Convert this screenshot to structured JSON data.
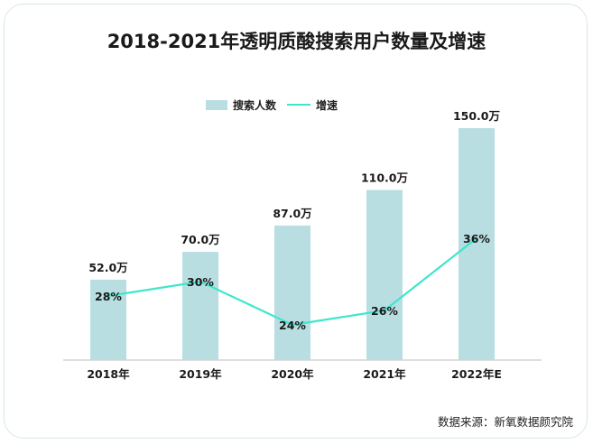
{
  "title": "2018-2021年透明质酸搜索用户数量及增速",
  "legend": {
    "bars_label": "搜索人数",
    "line_label": "增速"
  },
  "source": "数据来源：新氧数据颜究院",
  "colors": {
    "bar": "#b8dee2",
    "line": "#3ee6cc",
    "text": "#1a1a1a",
    "axis": "#bdbdbd"
  },
  "chart_data": {
    "type": "bar",
    "title": "2018-2021年透明质酸搜索用户数量及增速",
    "categories": [
      "2018年",
      "2019年",
      "2020年",
      "2021年",
      "2022年E"
    ],
    "series": [
      {
        "name": "搜索人数",
        "type": "bar",
        "values": [
          52.0,
          70.0,
          87.0,
          110.0,
          150.0
        ],
        "labels": [
          "52.0万",
          "70.0万",
          "87.0万",
          "110.0万",
          "150.0万"
        ]
      },
      {
        "name": "增速",
        "type": "line",
        "values": [
          28,
          30,
          24,
          26,
          36
        ],
        "labels": [
          "28%",
          "30%",
          "24%",
          "26%",
          "36%"
        ]
      }
    ],
    "xlabel": "",
    "ylabel": "",
    "grid": false,
    "legend_position": "top"
  }
}
